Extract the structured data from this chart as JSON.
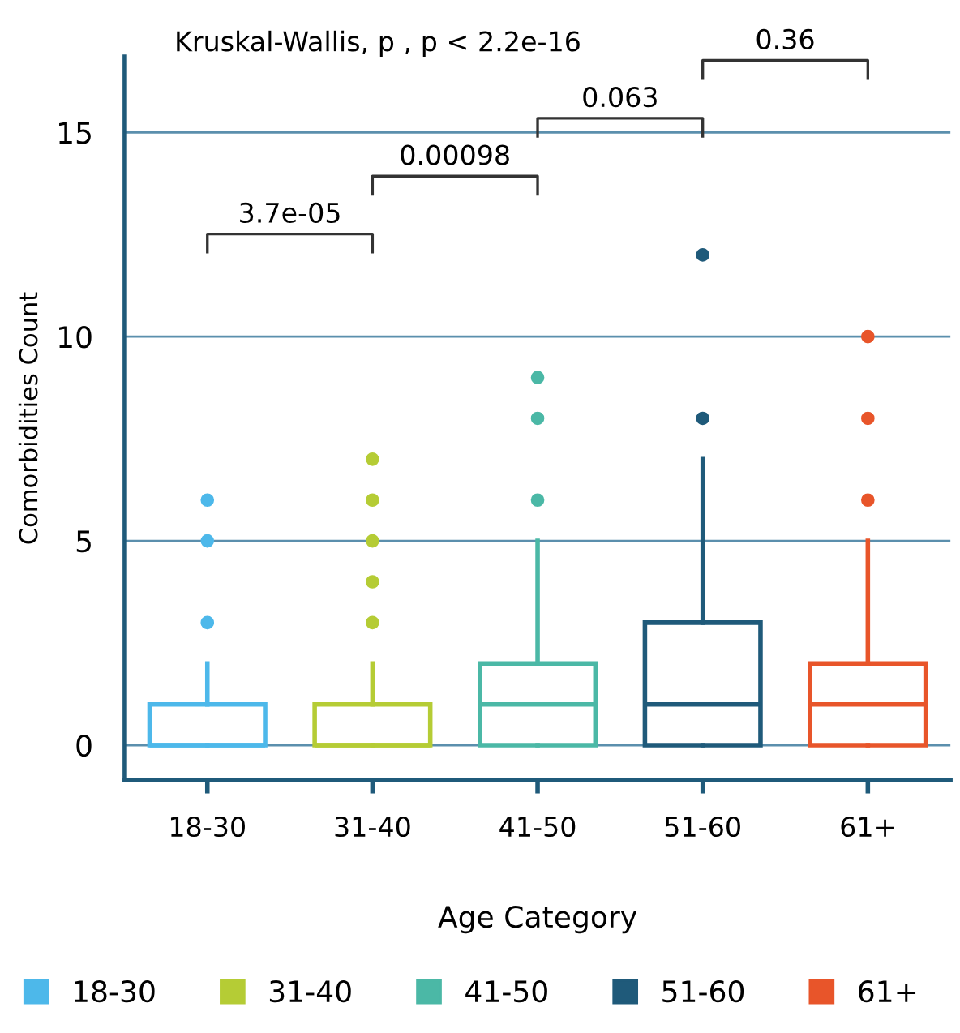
{
  "chart_data": {
    "type": "box",
    "xlabel": "Age Category",
    "ylabel": "Comorbidities Count",
    "categories": [
      "18-30",
      "31-40",
      "41-50",
      "51-60",
      "61+"
    ],
    "series": [
      {
        "name": "18-30",
        "color": "#4db8ea",
        "boxes": [
          {
            "low": 0,
            "q1": 0,
            "median": 0,
            "q3": 1,
            "high": 2,
            "outliers": [
              3,
              5,
              6
            ]
          },
          null,
          null,
          null,
          null
        ]
      },
      {
        "name": "31-40",
        "color": "#b5cc35",
        "boxes": [
          null,
          {
            "low": 0,
            "q1": 0,
            "median": 0,
            "q3": 1,
            "high": 2,
            "outliers": [
              3,
              4,
              5,
              6,
              7
            ]
          },
          null,
          null,
          null
        ]
      },
      {
        "name": "41-50",
        "color": "#4bb8a6",
        "boxes": [
          null,
          null,
          {
            "low": 0,
            "q1": 0,
            "median": 1,
            "q3": 2,
            "high": 5,
            "outliers": [
              6,
              8,
              9
            ]
          },
          null,
          null
        ]
      },
      {
        "name": "51-60",
        "color": "#1f5a7a",
        "boxes": [
          null,
          null,
          null,
          {
            "low": 0,
            "q1": 0,
            "median": 1,
            "q3": 3,
            "high": 7,
            "outliers": [
              8,
              12
            ]
          },
          null
        ]
      },
      {
        "name": "61+",
        "color": "#e8552a",
        "boxes": [
          null,
          null,
          null,
          null,
          {
            "low": 0,
            "q1": 0,
            "median": 1,
            "q3": 2,
            "high": 5,
            "outliers": [
              6,
              8,
              10
            ]
          }
        ]
      }
    ],
    "ylim": [
      -0.85,
      16.85
    ],
    "yticks": [
      0,
      5,
      10,
      15
    ],
    "grid": "y",
    "legend": "bottom",
    "annotations": [
      "Kruskal-Wallis, p , p < 2.2e-16",
      "3.7e-05",
      "0.00098",
      "0.063",
      "0.36"
    ]
  }
}
